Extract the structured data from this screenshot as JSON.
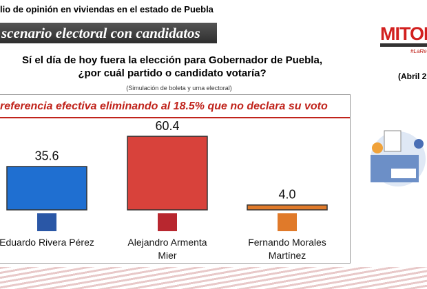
{
  "chart_data": {
    "type": "bar",
    "header": "lio de opinión en viviendas en el estado de Puebla",
    "banner": "scenario electoral con candidatos",
    "title_lines": [
      "Sí el día de hoy fuera la elección para Gobernador de Puebla,",
      "¿por cuál partido o candidato votaría?"
    ],
    "note": "(Simulación de boleta y urna electoral)",
    "subtitle": "referencia efectiva eliminando al 18.5% que no declara su voto",
    "brand": "MITOF",
    "brand_tag": "#LaRe",
    "date": "(Abril 2",
    "categories": [
      "Eduardo Rivera Pérez",
      "Alejandro Armenta Mier",
      "Fernando Morales Martínez"
    ],
    "values": [
      35.6,
      60.4,
      4.0
    ],
    "value_labels": [
      "35.6",
      "60.4",
      "4.0"
    ],
    "colors": [
      "#1f6fd1",
      "#d8423b",
      "#e07a2a"
    ]
  }
}
